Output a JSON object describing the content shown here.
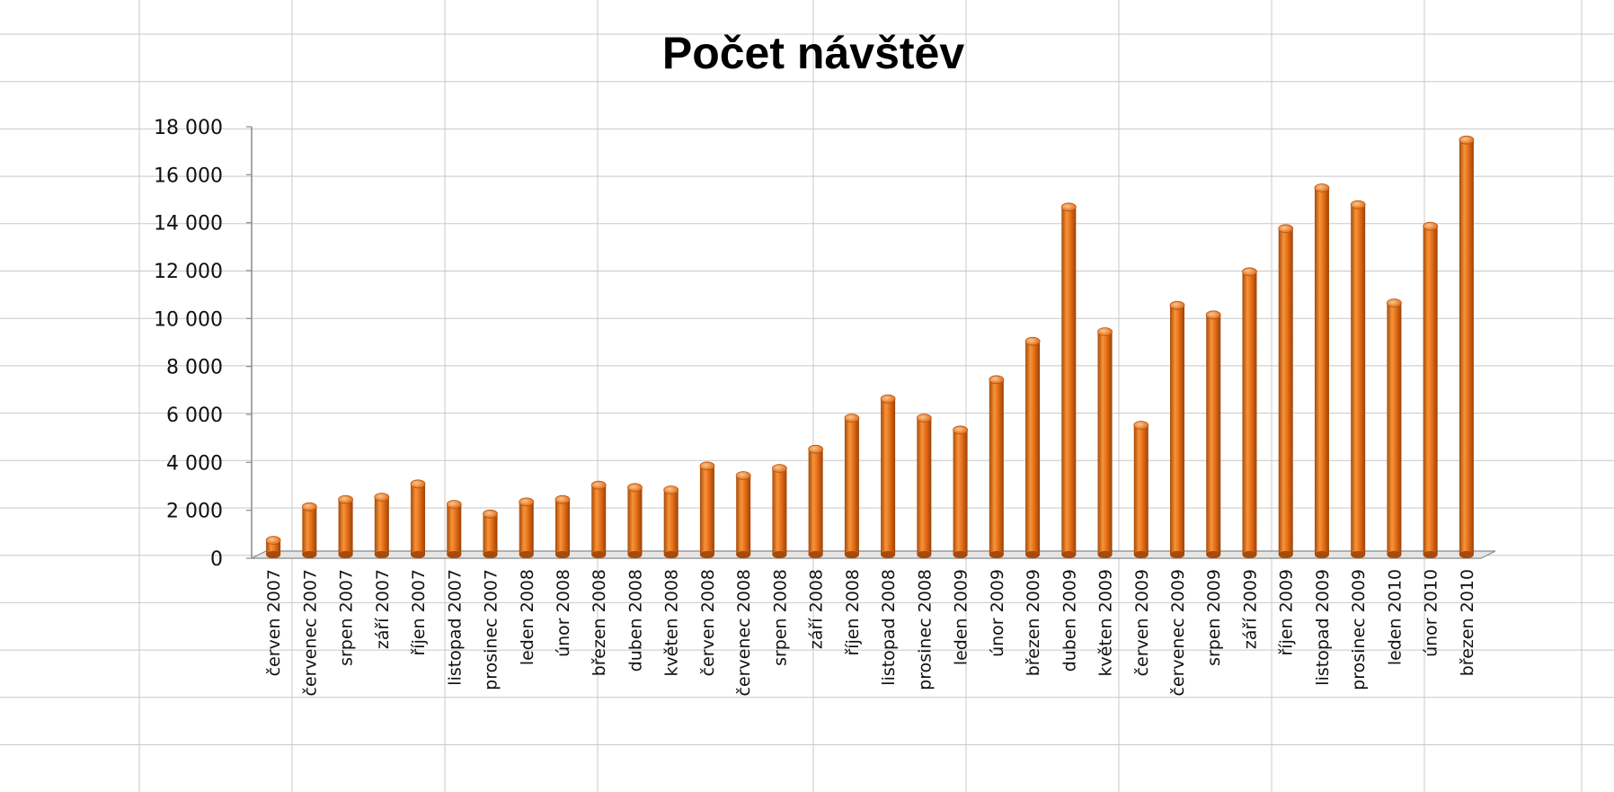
{
  "chart_data": {
    "type": "bar",
    "title": "Počet návštěv",
    "xlabel": "",
    "ylabel": "",
    "ylim": [
      0,
      18000
    ],
    "yticks": [
      0,
      2000,
      4000,
      6000,
      8000,
      10000,
      12000,
      14000,
      16000,
      18000
    ],
    "ytick_labels": [
      "0",
      "2 000",
      "4 000",
      "6 000",
      "8 000",
      "10 000",
      "12 000",
      "14 000",
      "16 000",
      "18 000"
    ],
    "grid": true,
    "legend": "none",
    "bar_color": "#e8701a",
    "categories": [
      "červen 2007",
      "červenec 2007",
      "srpen 2007",
      "září 2007",
      "říjen 2007",
      "listopad 2007",
      "prosinec 2007",
      "leden 2008",
      "únor 2008",
      "březen 2008",
      "duben 2008",
      "květen 2008",
      "červen 2008",
      "červenec 2008",
      "srpen 2008",
      "září 2008",
      "říjen 2008",
      "listopad 2008",
      "prosinec 2008",
      "leden 2009",
      "únor 2009",
      "březen 2009",
      "duben 2009",
      "květen 2009",
      "červen 2009",
      "červenec 2009",
      "srpen 2009",
      "září 2009",
      "říjen 2009",
      "listopad 2009",
      "prosinec 2009",
      "leden 2010",
      "únor 2010",
      "březen 2010"
    ],
    "values": [
      600,
      2000,
      2300,
      2400,
      2950,
      2100,
      1700,
      2200,
      2300,
      2900,
      2800,
      2700,
      3700,
      3300,
      3600,
      4400,
      5700,
      6500,
      5700,
      5200,
      7300,
      8900,
      14500,
      9300,
      5400,
      10400,
      10000,
      11800,
      13600,
      15300,
      14600,
      10500,
      13700,
      17300
    ]
  }
}
